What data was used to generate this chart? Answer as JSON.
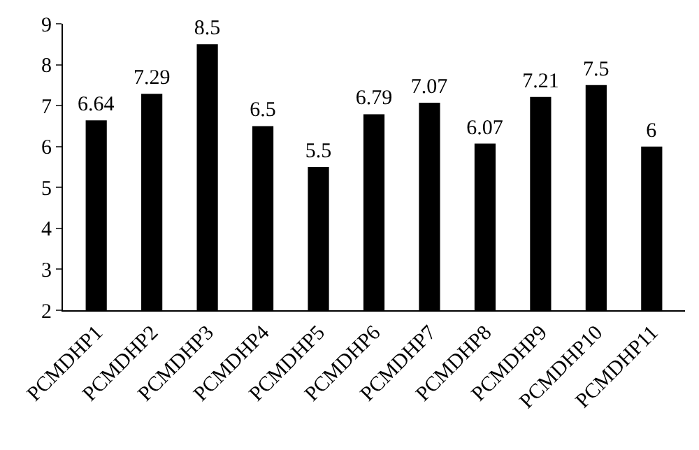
{
  "chart_data": {
    "type": "bar",
    "categories": [
      "PCMDHP1",
      "PCMDHP2",
      "PCMDHP3",
      "PCMDHP4",
      "PCMDHP5",
      "PCMDHP6",
      "PCMDHP7",
      "PCMDHP8",
      "PCMDHP9",
      "PCMDHP10",
      "PCMDHP11"
    ],
    "values": [
      6.64,
      7.29,
      8.5,
      6.5,
      5.5,
      6.79,
      7.07,
      6.07,
      7.21,
      7.5,
      6
    ],
    "color": "#000000",
    "ylim": [
      2,
      9
    ],
    "yticks": [
      2,
      3,
      4,
      5,
      6,
      7,
      8,
      9
    ],
    "data_labels": true
  }
}
